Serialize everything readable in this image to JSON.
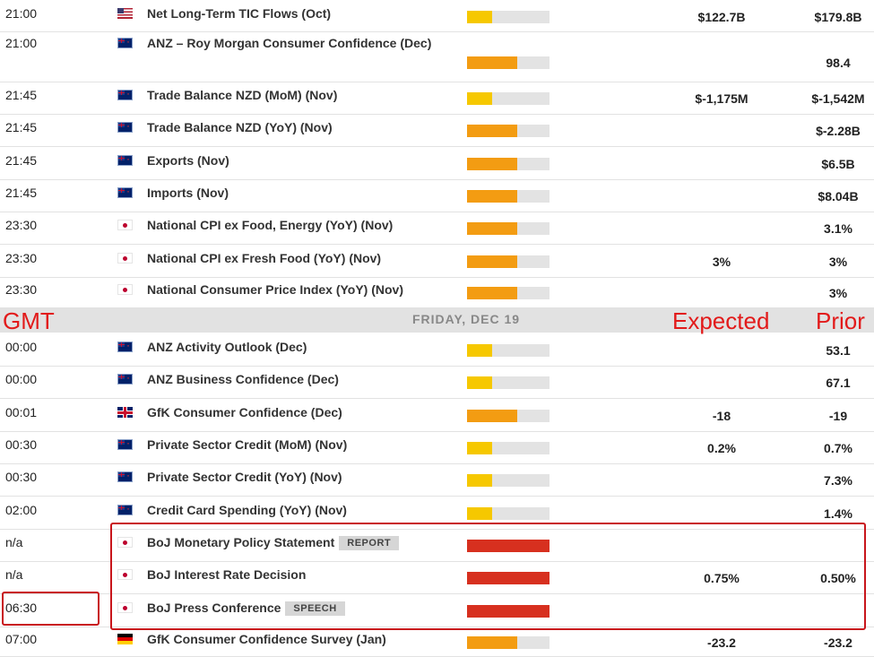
{
  "colors": {
    "low": "#f6c800",
    "medium": "#f39c12",
    "high": "#d7301f",
    "annotation": "#e21a1a"
  },
  "rows_before": [
    {
      "time": "21:00",
      "flag": "us",
      "event": "Net Long-Term TIC Flows (Oct)",
      "impact": "low",
      "expected": "$122.7B",
      "prior": "$179.8B"
    },
    {
      "time": "21:00",
      "flag": "nz",
      "event": "ANZ – Roy Morgan Consumer Confidence (Dec)",
      "impact": "medium",
      "expected": "",
      "prior": "98.4"
    },
    {
      "time": "21:45",
      "flag": "nz",
      "event": "Trade Balance NZD (MoM) (Nov)",
      "impact": "low",
      "expected": "$-1,175M",
      "prior": "$-1,542M"
    },
    {
      "time": "21:45",
      "flag": "nz",
      "event": "Trade Balance NZD (YoY) (Nov)",
      "impact": "medium",
      "expected": "",
      "prior": "$-2.28B"
    },
    {
      "time": "21:45",
      "flag": "nz",
      "event": "Exports (Nov)",
      "impact": "medium",
      "expected": "",
      "prior": "$6.5B"
    },
    {
      "time": "21:45",
      "flag": "nz",
      "event": "Imports (Nov)",
      "impact": "medium",
      "expected": "",
      "prior": "$8.04B"
    },
    {
      "time": "23:30",
      "flag": "jp",
      "event": "National CPI ex Food, Energy (YoY) (Nov)",
      "impact": "medium",
      "expected": "",
      "prior": "3.1%"
    },
    {
      "time": "23:30",
      "flag": "jp",
      "event": "National CPI ex Fresh Food (YoY) (Nov)",
      "impact": "medium",
      "expected": "3%",
      "prior": "3%"
    },
    {
      "time": "23:30",
      "flag": "jp",
      "event": "National Consumer Price Index (YoY) (Nov)",
      "impact": "medium",
      "expected": "",
      "prior": "3%"
    }
  ],
  "day_header": "FRIDAY, DEC 19",
  "annotations": {
    "gmt": "GMT",
    "expected": "Expected",
    "prior": "Prior"
  },
  "rows_after": [
    {
      "time": "00:00",
      "flag": "nz",
      "event": "ANZ Activity Outlook (Dec)",
      "impact": "low",
      "expected": "",
      "prior": "53.1"
    },
    {
      "time": "00:00",
      "flag": "nz",
      "event": "ANZ Business Confidence (Dec)",
      "impact": "low",
      "expected": "",
      "prior": "67.1"
    },
    {
      "time": "00:01",
      "flag": "gb",
      "event": "GfK Consumer Confidence (Dec)",
      "impact": "medium",
      "expected": "-18",
      "prior": "-19"
    },
    {
      "time": "00:30",
      "flag": "au",
      "event": "Private Sector Credit (MoM) (Nov)",
      "impact": "low",
      "expected": "0.2%",
      "prior": "0.7%"
    },
    {
      "time": "00:30",
      "flag": "au",
      "event": "Private Sector Credit (YoY) (Nov)",
      "impact": "low",
      "expected": "",
      "prior": "7.3%"
    },
    {
      "time": "02:00",
      "flag": "au",
      "event": "Credit Card Spending (YoY) (Nov)",
      "impact": "low",
      "expected": "",
      "prior": "1.4%"
    },
    {
      "time": "n/a",
      "flag": "jp",
      "event": "BoJ Monetary Policy Statement",
      "tag": "REPORT",
      "impact": "high",
      "expected": "",
      "prior": ""
    },
    {
      "time": "n/a",
      "flag": "jp",
      "event": "BoJ Interest Rate Decision",
      "impact": "high",
      "expected": "0.75%",
      "prior": "0.50%"
    },
    {
      "time": "06:30",
      "flag": "jp",
      "event": "BoJ Press Conference",
      "tag": "SPEECH",
      "impact": "high",
      "expected": "",
      "prior": ""
    },
    {
      "time": "07:00",
      "flag": "de",
      "event": "GfK Consumer Confidence Survey (Jan)",
      "impact": "medium",
      "expected": "-23.2",
      "prior": "-23.2"
    }
  ]
}
